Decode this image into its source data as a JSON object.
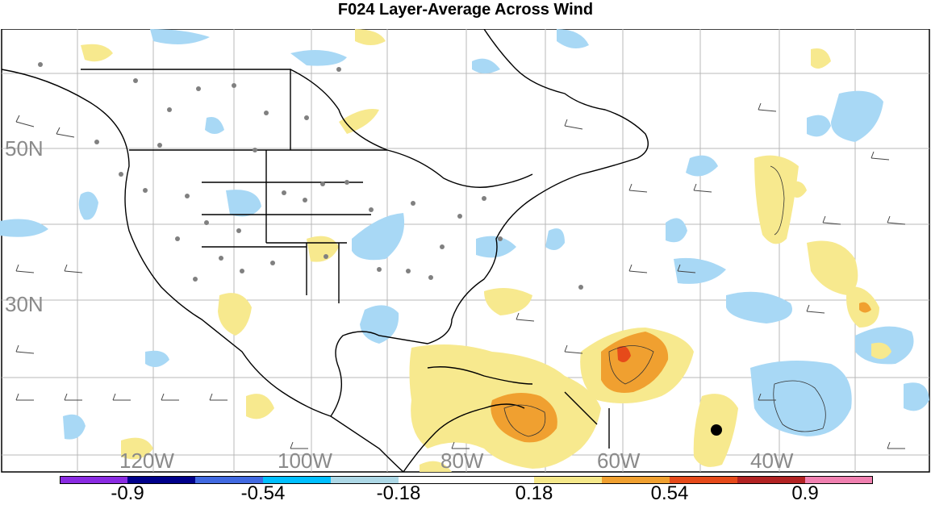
{
  "title": "F024 Layer-Average Across Wind",
  "map": {
    "latitude_labels": [
      "50N",
      "30N"
    ],
    "longitude_labels": [
      "120W",
      "100W",
      "80W",
      "60W",
      "40W"
    ],
    "land_color": "#ffffff",
    "coastline_color": "#000000",
    "grid_color": "#b0b0b0",
    "station_dot_color": "#808080",
    "marker_color": "#000000"
  },
  "colorbar": {
    "labels": [
      "-0.9",
      "-0.54",
      "-0.18",
      "0.18",
      "0.54",
      "0.9"
    ],
    "colors": [
      "#8a2be2",
      "#00008b",
      "#4169e1",
      "#00bfff",
      "#add8e6",
      "#ffffff",
      "#f5e88a",
      "#f0a030",
      "#e64a1a",
      "#b22222",
      "#f080b0"
    ]
  }
}
